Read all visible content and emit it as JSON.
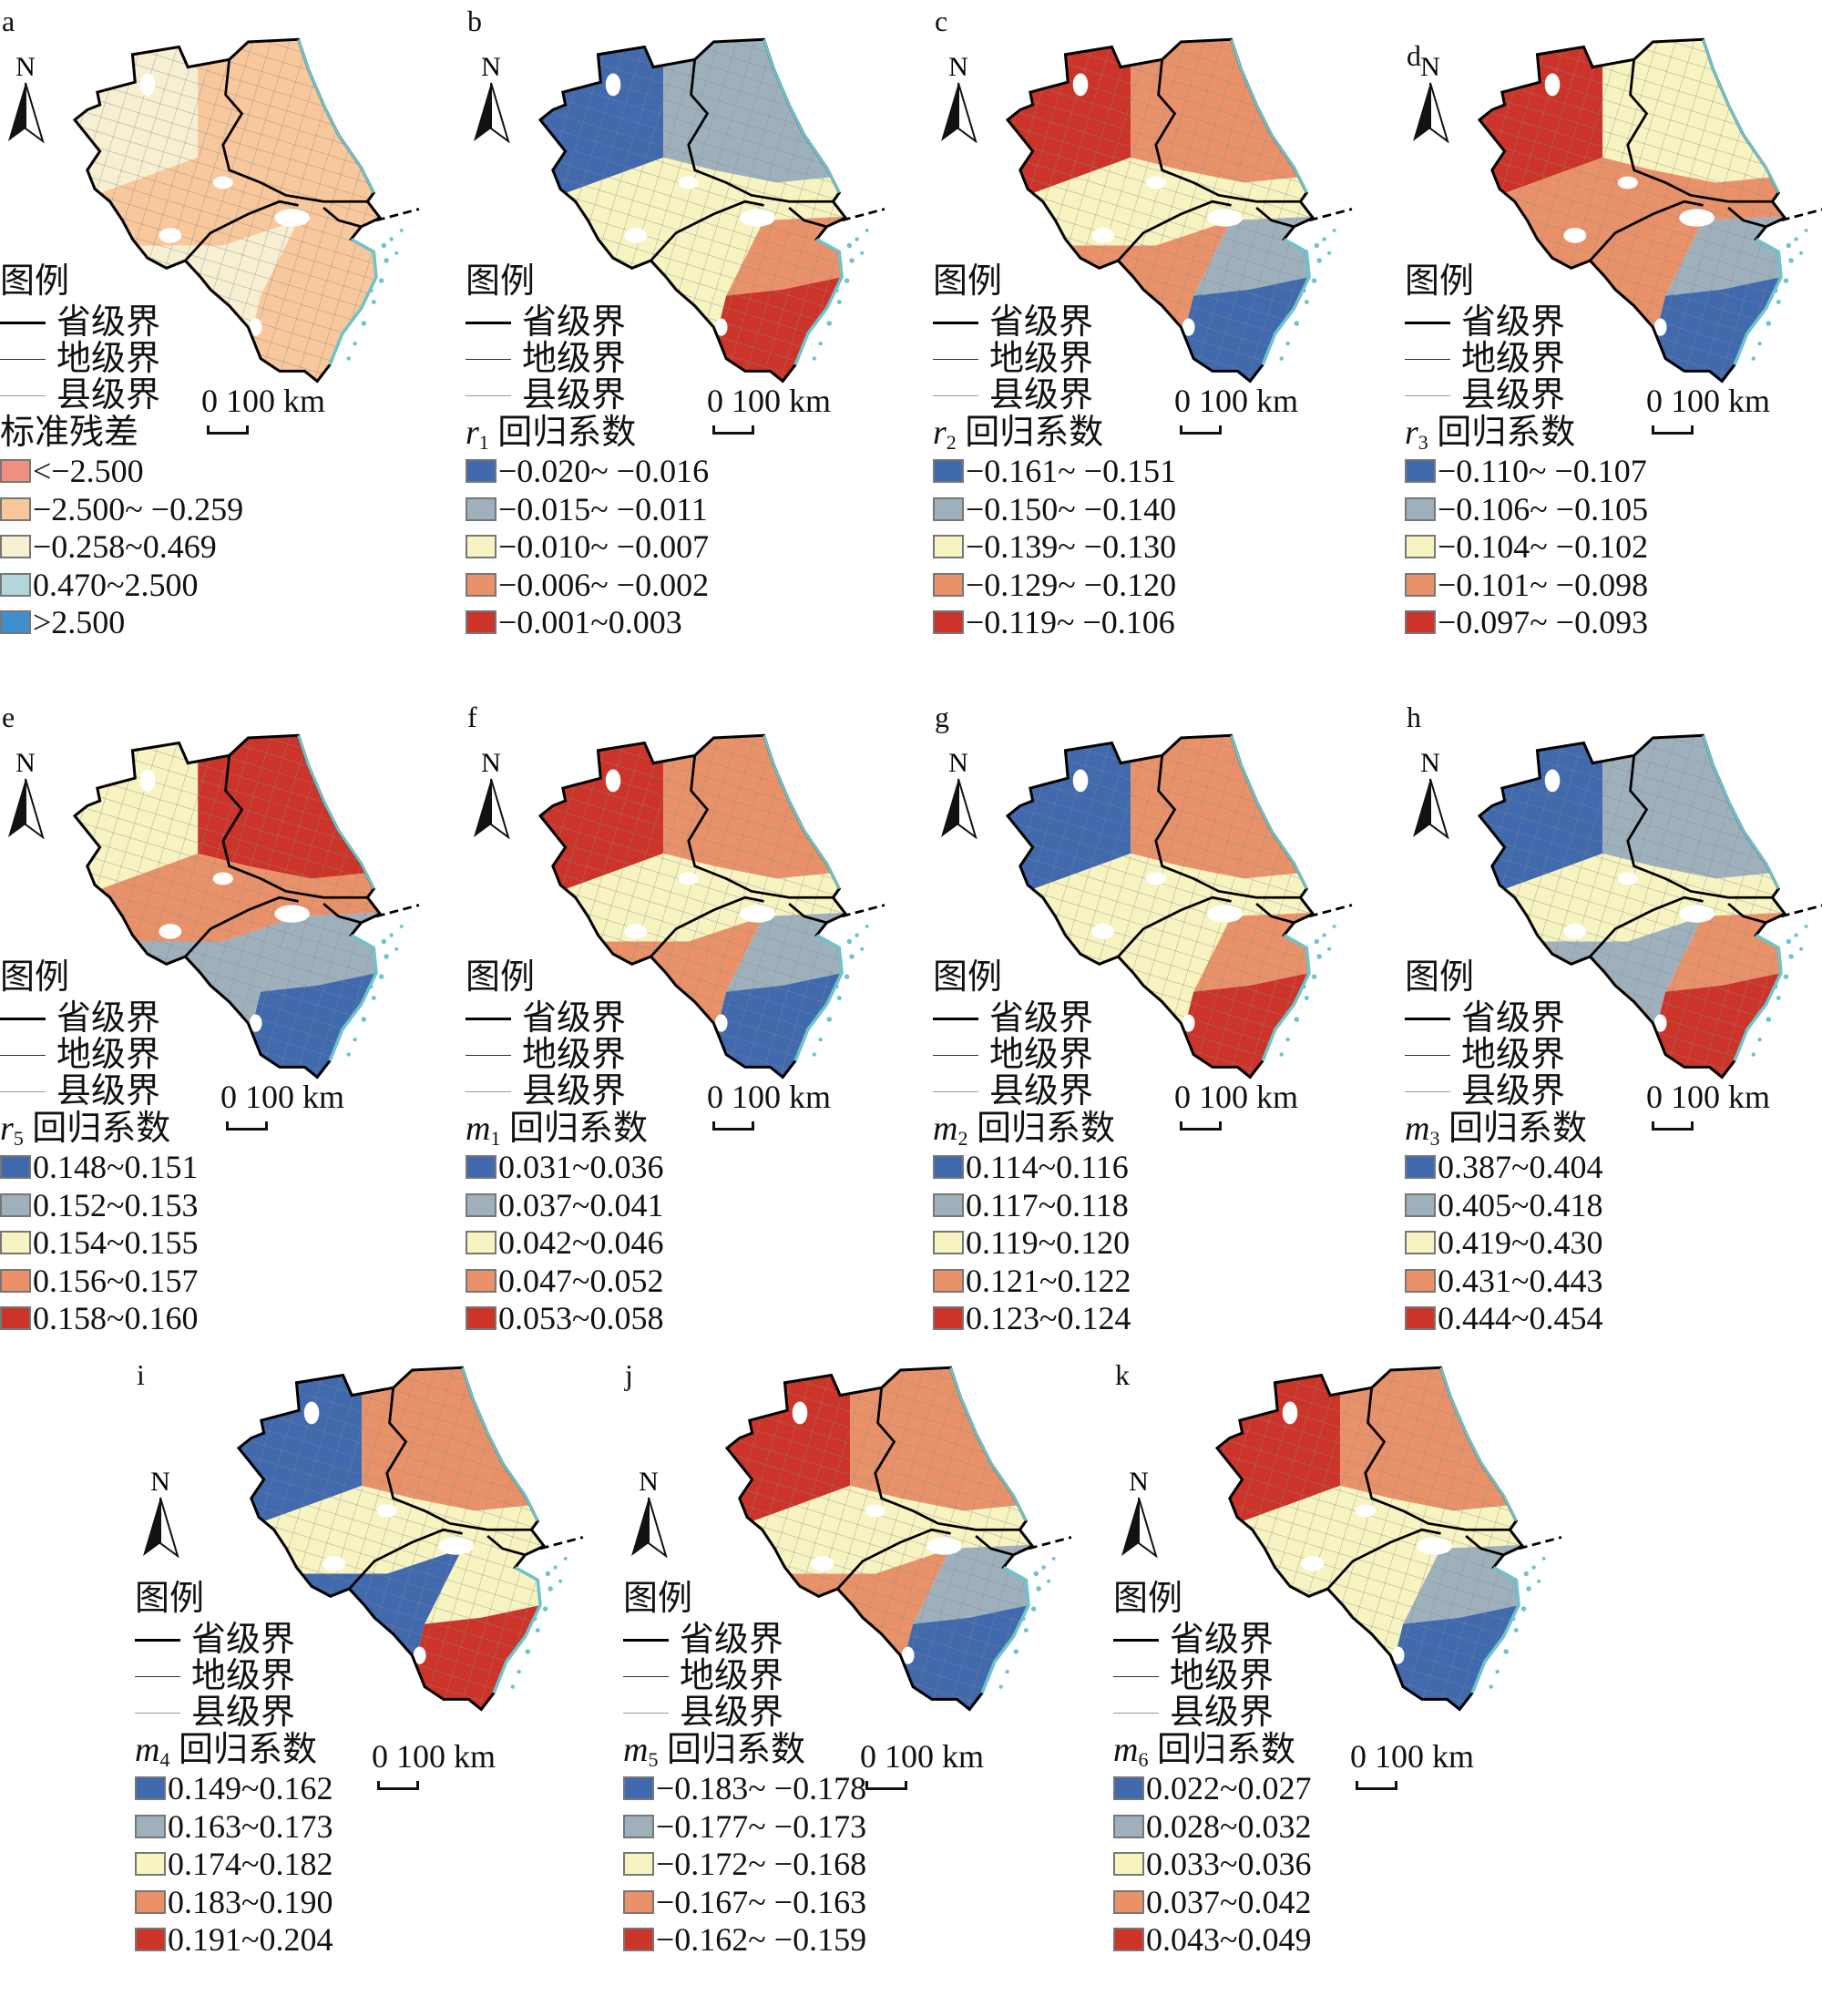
{
  "legend_heading": "图例",
  "boundary_labels": [
    "省级界",
    "地级界",
    "县级界"
  ],
  "north_label": "N",
  "scale_label": "0 100 km",
  "palette_coef": [
    "#4169ad",
    "#9fb0bd",
    "#f8f4c1",
    "#e9926a",
    "#cc3429"
  ],
  "palette_resid": [
    "#f08f7f",
    "#f8c79b",
    "#f6efd2",
    "#b2d6d9",
    "#3f8fcf"
  ],
  "boundary_colors": {
    "coast": "#6cc4cc",
    "province": "#000000",
    "county": "#888888"
  },
  "panels": [
    {
      "letter": "a",
      "var": "",
      "sub": "",
      "title": "标准残差",
      "palette": "resid",
      "classes": [
        "<−2.500",
        "−2.500~ −0.259",
        "−0.258~0.469",
        "0.470~2.500",
        ">2.500"
      ],
      "zone_classes": [
        2,
        1,
        1,
        2,
        1,
        1
      ]
    },
    {
      "letter": "b",
      "var": "r",
      "sub": "1",
      "title": "回归系数",
      "palette": "coef",
      "classes": [
        "−0.020~ −0.016",
        "−0.015~ −0.011",
        "−0.010~ −0.007",
        "−0.006~ −0.002",
        "−0.001~0.003"
      ],
      "zone_classes": [
        0,
        1,
        2,
        2,
        3,
        4
      ]
    },
    {
      "letter": "c",
      "var": "r",
      "sub": "2",
      "title": "回归系数",
      "palette": "coef",
      "classes": [
        "−0.161~ −0.151",
        "−0.150~ −0.140",
        "−0.139~ −0.130",
        "−0.129~ −0.120",
        "−0.119~ −0.106"
      ],
      "zone_classes": [
        4,
        3,
        2,
        3,
        1,
        0
      ]
    },
    {
      "letter": "d",
      "var": "r",
      "sub": "3",
      "title": "回归系数",
      "palette": "coef",
      "classes": [
        "−0.110~ −0.107",
        "−0.106~ −0.105",
        "−0.104~ −0.102",
        "−0.101~ −0.098",
        "−0.097~ −0.093"
      ],
      "zone_classes": [
        4,
        2,
        3,
        3,
        1,
        0
      ]
    },
    {
      "letter": "e",
      "var": "r",
      "sub": "5",
      "title": "回归系数",
      "palette": "coef",
      "classes": [
        "0.148~0.151",
        "0.152~0.153",
        "0.154~0.155",
        "0.156~0.157",
        "0.158~0.160"
      ],
      "zone_classes": [
        2,
        4,
        3,
        1,
        1,
        0
      ]
    },
    {
      "letter": "f",
      "var": "m",
      "sub": "1",
      "title": "回归系数",
      "palette": "coef",
      "classes": [
        "0.031~0.036",
        "0.037~0.041",
        "0.042~0.046",
        "0.047~0.052",
        "0.053~0.058"
      ],
      "zone_classes": [
        4,
        3,
        2,
        3,
        1,
        0
      ]
    },
    {
      "letter": "g",
      "var": "m",
      "sub": "2",
      "title": "回归系数",
      "palette": "coef",
      "classes": [
        "0.114~0.116",
        "0.117~0.118",
        "0.119~0.120",
        "0.121~0.122",
        "0.123~0.124"
      ],
      "zone_classes": [
        0,
        3,
        2,
        2,
        3,
        4
      ]
    },
    {
      "letter": "h",
      "var": "m",
      "sub": "3",
      "title": "回归系数",
      "palette": "coef",
      "classes": [
        "0.387~0.404",
        "0.405~0.418",
        "0.419~0.430",
        "0.431~0.443",
        "0.444~0.454"
      ],
      "zone_classes": [
        0,
        1,
        2,
        1,
        3,
        4
      ]
    },
    {
      "letter": "i",
      "var": "m",
      "sub": "4",
      "title": "回归系数",
      "palette": "coef",
      "classes": [
        "0.149~0.162",
        "0.163~0.173",
        "0.174~0.182",
        "0.183~0.190",
        "0.191~0.204"
      ],
      "zone_classes": [
        0,
        3,
        2,
        0,
        2,
        4
      ]
    },
    {
      "letter": "j",
      "var": "m",
      "sub": "5",
      "title": "回归系数",
      "palette": "coef",
      "classes": [
        "−0.183~ −0.178",
        "−0.177~ −0.173",
        "−0.172~ −0.168",
        "−0.167~ −0.163",
        "−0.162~ −0.159"
      ],
      "zone_classes": [
        4,
        3,
        2,
        3,
        1,
        0
      ]
    },
    {
      "letter": "k",
      "var": "m",
      "sub": "6",
      "title": "回归系数",
      "palette": "coef",
      "classes": [
        "0.022~0.027",
        "0.028~0.032",
        "0.033~0.036",
        "0.037~0.042",
        "0.043~0.049"
      ],
      "zone_classes": [
        4,
        3,
        2,
        2,
        1,
        0
      ]
    }
  ]
}
